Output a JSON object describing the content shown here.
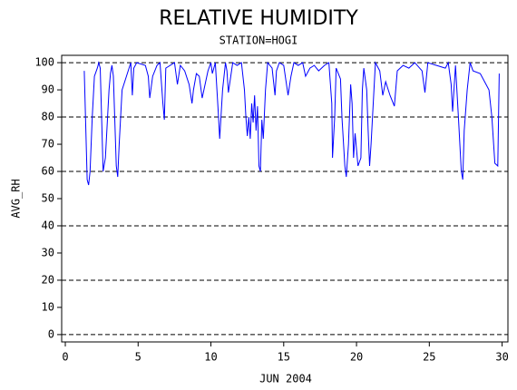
{
  "chart_data": {
    "type": "line",
    "title": "RELATIVE HUMIDITY",
    "subtitle": "STATION=HOGI",
    "x_label": "JUN 2004",
    "y_label": "AVG_RH",
    "color": "#0000ff",
    "xlim": [
      -0.25,
      30.4
    ],
    "ylim": [
      -2.7,
      102.7
    ],
    "xticks": [
      0,
      5,
      10,
      15,
      20,
      25,
      30
    ],
    "yticks": [
      0,
      10,
      20,
      30,
      40,
      50,
      60,
      70,
      80,
      90,
      100
    ],
    "grid": [
      0,
      20,
      40,
      60,
      80,
      100
    ],
    "x": [
      1.3,
      1.5,
      1.6,
      1.7,
      1.85,
      2.0,
      2.2,
      2.3,
      2.4,
      2.6,
      2.75,
      2.9,
      3.0,
      3.1,
      3.2,
      3.3,
      3.5,
      3.6,
      3.7,
      3.9,
      4.2,
      4.5,
      4.6,
      4.7,
      4.9,
      5.5,
      5.7,
      5.8,
      6.0,
      6.3,
      6.5,
      6.7,
      6.8,
      6.9,
      7.5,
      7.7,
      7.9,
      8.2,
      8.5,
      8.7,
      8.8,
      9.0,
      9.2,
      9.4,
      9.6,
      9.8,
      10.0,
      10.1,
      10.3,
      10.5,
      10.6,
      10.8,
      11.0,
      11.1,
      11.2,
      11.5,
      11.8,
      12.1,
      12.3,
      12.4,
      12.5,
      12.6,
      12.7,
      12.8,
      12.9,
      13.0,
      13.1,
      13.2,
      13.3,
      13.4,
      13.5,
      13.6,
      13.75,
      13.9,
      14.2,
      14.4,
      14.5,
      14.7,
      15.0,
      15.3,
      15.5,
      15.7,
      16.0,
      16.3,
      16.5,
      16.8,
      17.1,
      17.4,
      17.8,
      18.1,
      18.3,
      18.35,
      18.5,
      18.6,
      18.9,
      19.0,
      19.2,
      19.3,
      19.45,
      19.6,
      19.7,
      19.8,
      19.9,
      20.1,
      20.3,
      20.4,
      20.5,
      20.7,
      20.8,
      20.9,
      21.0,
      21.3,
      21.6,
      21.8,
      22.0,
      22.3,
      22.6,
      22.8,
      23.2,
      23.6,
      24.0,
      24.5,
      24.7,
      24.9,
      25.5,
      26.1,
      26.3,
      26.5,
      26.6,
      26.8,
      27.0,
      27.2,
      27.3,
      27.4,
      27.6,
      27.8,
      28.0,
      28.5,
      28.9,
      29.1,
      29.3,
      29.5,
      29.7,
      29.8
    ],
    "values": [
      97,
      57,
      55,
      60,
      80,
      95,
      98,
      100,
      98,
      60,
      65,
      80,
      90,
      96,
      99,
      95,
      62,
      58,
      70,
      90,
      95,
      100,
      88,
      98,
      100,
      99,
      95,
      87,
      95,
      99,
      100,
      85,
      79,
      98,
      100,
      92,
      99,
      97,
      92,
      85,
      90,
      96,
      95,
      87,
      92,
      97,
      100,
      96,
      100,
      82,
      72,
      90,
      100,
      97,
      89,
      100,
      99,
      100,
      90,
      80,
      73,
      80,
      72,
      85,
      78,
      88,
      75,
      84,
      62,
      60,
      79,
      72,
      90,
      100,
      98,
      88,
      97,
      100,
      99,
      88,
      95,
      100,
      99,
      100,
      95,
      98,
      99,
      97,
      99,
      100,
      85,
      65,
      80,
      98,
      94,
      80,
      62,
      58,
      70,
      92,
      85,
      65,
      74,
      62,
      65,
      90,
      98,
      90,
      75,
      62,
      70,
      100,
      97,
      88,
      93,
      88,
      84,
      97,
      99,
      98,
      100,
      97,
      89,
      100,
      99,
      98,
      100,
      92,
      82,
      99,
      80,
      60,
      57,
      75,
      90,
      100,
      97,
      96,
      92,
      90,
      80,
      63,
      62,
      96
    ]
  }
}
